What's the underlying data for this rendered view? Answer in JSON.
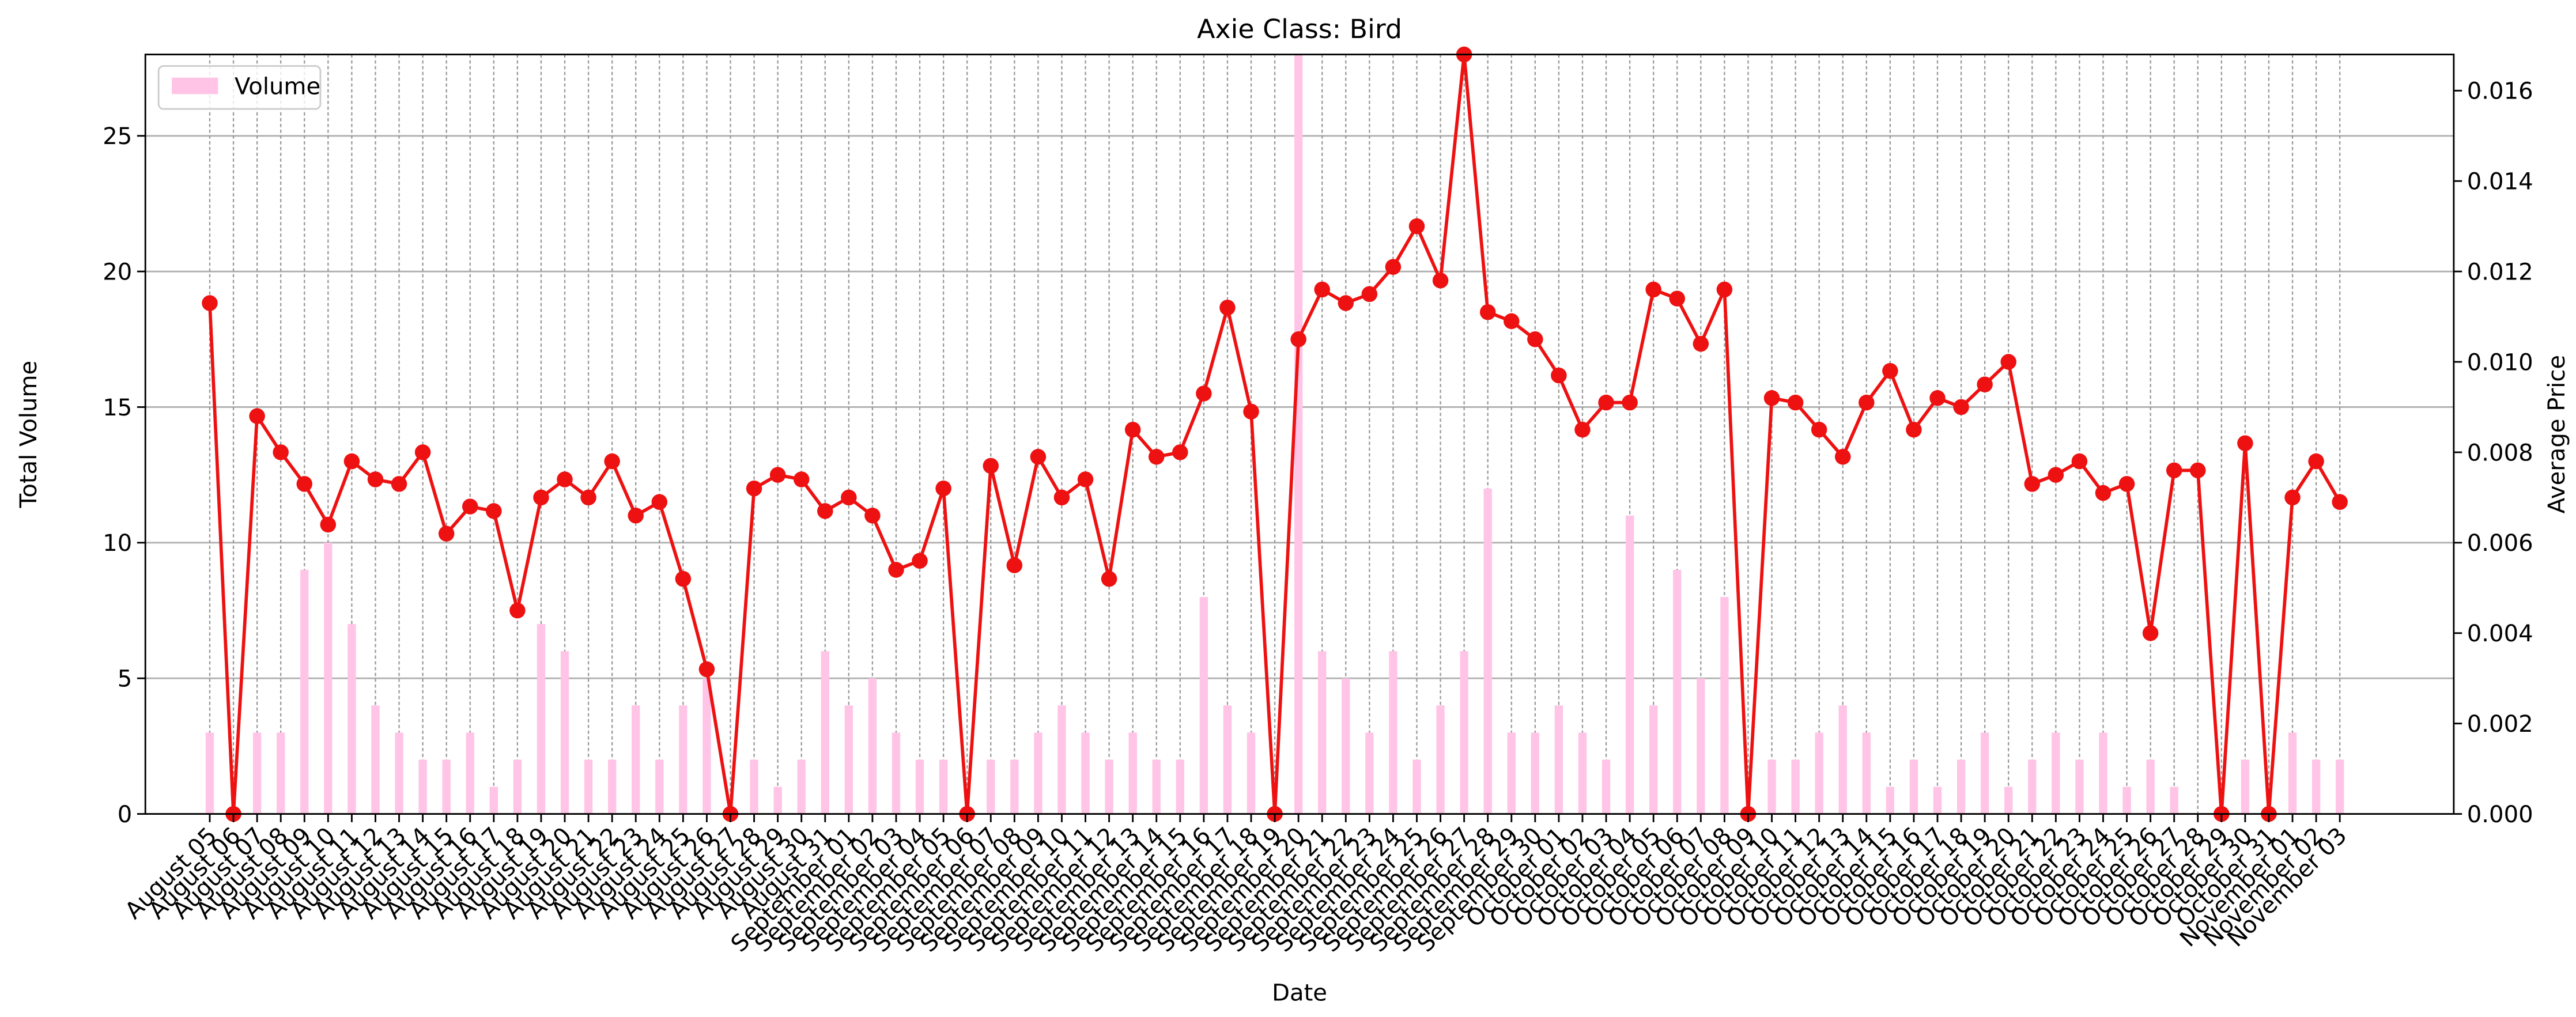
{
  "chart_data": {
    "type": "bar-line",
    "title": "Axie Class: Bird",
    "x_label": "Date",
    "y_label": "Total Volume",
    "y2_label": "Average Price",
    "categories": [
      "August 05",
      "August 06",
      "August 07",
      "August 08",
      "August 09",
      "August 10",
      "August 11",
      "August 12",
      "August 13",
      "August 14",
      "August 15",
      "August 16",
      "August 17",
      "August 18",
      "August 19",
      "August 20",
      "August 21",
      "August 22",
      "August 23",
      "August 24",
      "August 25",
      "August 26",
      "August 27",
      "August 28",
      "August 29",
      "August 30",
      "August 31",
      "September 01",
      "September 02",
      "September 03",
      "September 04",
      "September 05",
      "September 06",
      "September 07",
      "September 08",
      "September 09",
      "September 10",
      "September 11",
      "September 12",
      "September 13",
      "September 14",
      "September 15",
      "September 16",
      "September 17",
      "September 18",
      "September 19",
      "September 20",
      "September 21",
      "September 22",
      "September 23",
      "September 24",
      "September 25",
      "September 26",
      "September 27",
      "September 28",
      "September 29",
      "September 30",
      "October 01",
      "October 02",
      "October 03",
      "October 04",
      "October 05",
      "October 06",
      "October 07",
      "October 08",
      "October 09",
      "October 10",
      "October 11",
      "October 12",
      "October 13",
      "October 14",
      "October 15",
      "October 16",
      "October 17",
      "October 18",
      "October 19",
      "October 20",
      "October 21",
      "October 22",
      "October 23",
      "October 24",
      "October 25",
      "October 26",
      "October 27",
      "October 28",
      "October 29",
      "October 30",
      "October 31",
      "November 01",
      "November 02",
      "November 03"
    ],
    "series": [
      {
        "name": "Volume",
        "type": "bar",
        "color": "#ffc4e6",
        "values": [
          3,
          0,
          3,
          3,
          9,
          10,
          7,
          4,
          3,
          2,
          2,
          3,
          1,
          2,
          7,
          6,
          2,
          2,
          4,
          2,
          4,
          5,
          0,
          2,
          1,
          2,
          6,
          4,
          5,
          3,
          2,
          2,
          0,
          2,
          2,
          3,
          4,
          3,
          2,
          3,
          2,
          2,
          8,
          4,
          3,
          0,
          28,
          6,
          5,
          3,
          6,
          2,
          4,
          6,
          12,
          3,
          3,
          4,
          3,
          2,
          11,
          4,
          9,
          5,
          8,
          0,
          2,
          2,
          3,
          4,
          3,
          1,
          2,
          1,
          2,
          3,
          1,
          2,
          3,
          2,
          3,
          1,
          2,
          1,
          0,
          0,
          2,
          0,
          3,
          2,
          2
        ]
      },
      {
        "type": "line",
        "axis": "y2",
        "color": "#ee1111",
        "values": [
          0.0113,
          0,
          0.0088,
          0.008,
          0.0073,
          0.0064,
          0.0078,
          0.0074,
          0.0073,
          0.008,
          0.0062,
          0.0068,
          0.0067,
          0.0045,
          0.007,
          0.0074,
          0.007,
          0.0078,
          0.0066,
          0.0069,
          0.0052,
          0.0032,
          0,
          0.0072,
          0.0075,
          0.0074,
          0.0067,
          0.007,
          0.0066,
          0.0054,
          0.0056,
          0.0072,
          0,
          0.0077,
          0.0055,
          0.0079,
          0.007,
          0.0074,
          0.0052,
          0.0085,
          0.0079,
          0.008,
          0.0093,
          0.0112,
          0.0089,
          0,
          0.0105,
          0.0116,
          0.0113,
          0.0115,
          0.0121,
          0.013,
          0.0118,
          0.0168,
          0.0111,
          0.0109,
          0.0105,
          0.0097,
          0.0085,
          0.0091,
          0.0091,
          0.0116,
          0.0114,
          0.0104,
          0.0116,
          0,
          0.0092,
          0.0091,
          0.0085,
          0.0079,
          0.0091,
          0.0098,
          0.0085,
          0.0092,
          0.009,
          0.0095,
          0.01,
          0.0073,
          0.0075,
          0.0078,
          0.0071,
          0.0073,
          0.004,
          0.0076,
          0.0076,
          0,
          0.0082,
          0,
          0.007,
          0.0078,
          0.0069
        ]
      }
    ],
    "ylim": [
      0,
      28
    ],
    "yticks": [
      0,
      5,
      10,
      15,
      20,
      25
    ],
    "y2lim": [
      0,
      0.0168
    ],
    "y2ticks": [
      {
        "value": 0,
        "label": "0.000"
      },
      {
        "value": 0.002,
        "label": "0.002"
      },
      {
        "value": 0.004,
        "label": "0.004"
      },
      {
        "value": 0.006,
        "label": "0.006"
      },
      {
        "value": 0.008,
        "label": "0.008"
      },
      {
        "value": 0.01,
        "label": "0.010"
      },
      {
        "value": 0.012,
        "label": "0.012"
      },
      {
        "value": 0.014,
        "label": "0.014"
      },
      {
        "value": 0.016,
        "label": "0.016"
      }
    ],
    "grid": true,
    "legend": "upper left"
  }
}
